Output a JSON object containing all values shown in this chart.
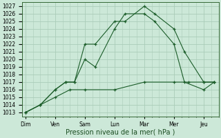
{
  "bg_color": "#cce8d8",
  "grid_color": "#aaccb8",
  "line_color": "#1a5c28",
  "days": [
    "Dim",
    "Ven",
    "Sam",
    "Lun",
    "Mar",
    "Mer",
    "Jeu"
  ],
  "xlabel": "Pression niveau de la mer( hPa )",
  "ylim": [
    1012.5,
    1027.5
  ],
  "yticks": [
    1013,
    1014,
    1015,
    1016,
    1017,
    1018,
    1019,
    1020,
    1021,
    1022,
    1023,
    1024,
    1025,
    1026,
    1027
  ],
  "series1_x": [
    0,
    0.5,
    1.0,
    1.35,
    1.65,
    2.0,
    2.35,
    3.0,
    3.35,
    4.0,
    4.35,
    5.0,
    5.35,
    6.0,
    6.35
  ],
  "series1_y": [
    1013,
    1014,
    1016,
    1017,
    1017,
    1022,
    1022,
    1025,
    1025,
    1027,
    1026,
    1024,
    1021,
    1017,
    1017
  ],
  "series2_x": [
    0,
    0.5,
    1.0,
    1.35,
    1.65,
    2.0,
    2.35,
    3.0,
    3.35,
    4.0,
    4.35,
    5.0,
    5.35,
    6.0,
    6.35
  ],
  "series2_y": [
    1013,
    1014,
    1016,
    1017,
    1017,
    1020,
    1019,
    1024,
    1026,
    1026,
    1025,
    1022,
    1017,
    1016,
    1017
  ],
  "series3_x": [
    0,
    0.5,
    1.0,
    1.5,
    2.0,
    3.0,
    4.0,
    5.0,
    5.5,
    6.0,
    6.35
  ],
  "series3_y": [
    1013,
    1014,
    1015,
    1016,
    1016,
    1016,
    1017,
    1017,
    1017,
    1017,
    1017
  ],
  "title_fontsize": 7.0,
  "tick_fontsize": 5.5,
  "figwidth": 3.2,
  "figheight": 2.0,
  "dpi": 100
}
